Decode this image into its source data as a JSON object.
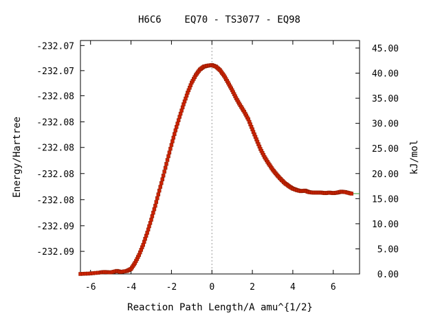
{
  "chart_data": {
    "type": "line",
    "title": "H6C6    EQ70 - TS3077 - EQ98",
    "xlabel": "Reaction Path Length/A amu^{1/2}",
    "ylabel": "Energy/Hartree",
    "y2label": "kJ/mol",
    "xlim": [
      -6.5,
      7.3
    ],
    "ylim_right": [
      0.0,
      46.5
    ],
    "x_ticks": [
      -6,
      -4,
      -2,
      0,
      2,
      4,
      6
    ],
    "x_tick_labels": [
      "-6",
      "-4",
      "-2",
      "0",
      "2",
      "4",
      "6"
    ],
    "y_left_tick_labels": [
      "-232.07",
      "-232.07",
      "-232.08",
      "-232.08",
      "-232.08",
      "-232.08",
      "-232.08",
      "-232.09",
      "-232.09"
    ],
    "y_left_tick_values_kjmol": [
      45.5,
      40.5,
      35.5,
      30.3,
      25.2,
      20.0,
      14.8,
      9.6,
      4.5
    ],
    "y_right_ticks": [
      0.0,
      5.0,
      10.0,
      15.0,
      20.0,
      25.0,
      30.0,
      35.0,
      40.0,
      45.0
    ],
    "y_right_tick_labels": [
      "0.00",
      "5.00",
      "10.00",
      "15.00",
      "20.00",
      "25.00",
      "30.00",
      "35.00",
      "40.00",
      "45.00"
    ],
    "ts_marker_x": 0.0,
    "grid": false,
    "series": [
      {
        "color": "#cc2200",
        "line_color": "#2a9a2a",
        "x": [
          -6.5,
          -6.0,
          -5.5,
          -5.3,
          -5.0,
          -4.7,
          -4.5,
          -4.2,
          -4.0,
          -3.8,
          -3.6,
          -3.4,
          -3.2,
          -3.0,
          -2.8,
          -2.6,
          -2.4,
          -2.2,
          -2.0,
          -1.8,
          -1.6,
          -1.4,
          -1.2,
          -1.0,
          -0.8,
          -0.6,
          -0.4,
          -0.2,
          0.0,
          0.2,
          0.4,
          0.6,
          0.8,
          1.0,
          1.2,
          1.4,
          1.6,
          1.8,
          2.0,
          2.2,
          2.4,
          2.6,
          2.8,
          3.0,
          3.2,
          3.4,
          3.6,
          3.8,
          4.0,
          4.2,
          4.4,
          4.6,
          4.8,
          5.0,
          5.2,
          5.4,
          5.6,
          5.8,
          6.0,
          6.2,
          6.4,
          6.6,
          6.9,
          7.3
        ],
        "y": [
          0.0,
          0.1,
          0.3,
          0.4,
          0.3,
          0.6,
          0.4,
          0.6,
          1.0,
          2.2,
          3.8,
          5.8,
          8.2,
          10.8,
          13.6,
          16.6,
          19.6,
          22.7,
          25.7,
          28.6,
          31.3,
          33.8,
          36.1,
          38.1,
          39.6,
          40.7,
          41.3,
          41.5,
          41.6,
          41.3,
          40.6,
          39.5,
          38.1,
          36.6,
          35.0,
          33.6,
          32.3,
          30.8,
          28.8,
          26.8,
          24.9,
          23.3,
          22.0,
          20.8,
          19.8,
          18.9,
          18.1,
          17.5,
          17.0,
          16.7,
          16.5,
          16.6,
          16.3,
          16.2,
          16.2,
          16.2,
          16.1,
          16.2,
          16.1,
          16.2,
          16.4,
          16.3,
          16.0,
          16.0
        ]
      }
    ]
  }
}
